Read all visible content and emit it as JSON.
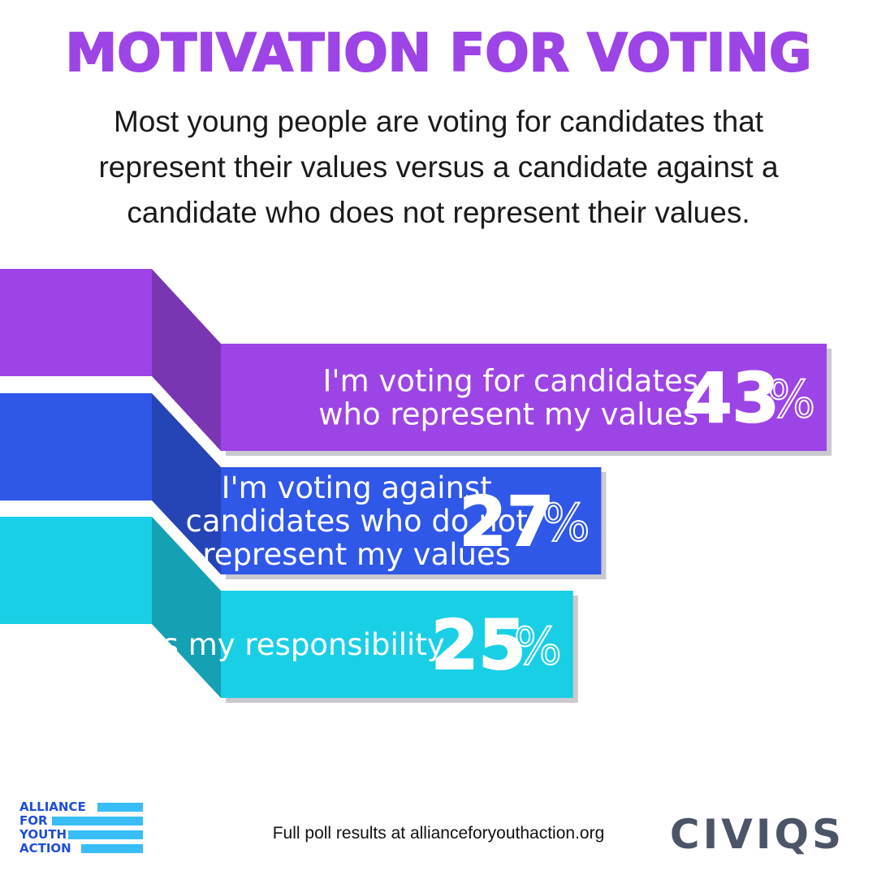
{
  "title": "MOTIVATION FOR VOTING",
  "subtitle": "Most young people are voting for candidates that represent their values versus a candidate against a candidate who does not represent their values.",
  "colors": {
    "title": "#9d44e6",
    "bar_1": "#9d44e6",
    "bar_2": "#2f57e8",
    "bar_3": "#19cfe6"
  },
  "chart_data": {
    "type": "bar",
    "title": "MOTIVATION FOR VOTING",
    "categories": [
      "I'm voting for candidates who represent my values",
      "I'm voting against candidates who do not represent my values",
      "It's my responsibility"
    ],
    "category_lines": [
      [
        "I'm voting for candidates",
        "who represent my values"
      ],
      [
        "I'm voting against",
        "candidates who do not",
        "represent my values"
      ],
      [
        "It's my responsibility"
      ]
    ],
    "values": [
      43,
      27,
      25
    ],
    "unit": "%",
    "orientation": "horizontal",
    "colors": [
      "#9d44e6",
      "#2f57e8",
      "#19cfe6"
    ]
  },
  "footer": {
    "text": "Full poll results at allianceforyouthaction.org"
  },
  "logos": {
    "left": {
      "lines": [
        "ALLIANCE",
        "FOR",
        "YOUTH",
        "ACTION"
      ],
      "icon": "stripes-logo-icon"
    },
    "right": {
      "text": "CIVIQS"
    }
  }
}
